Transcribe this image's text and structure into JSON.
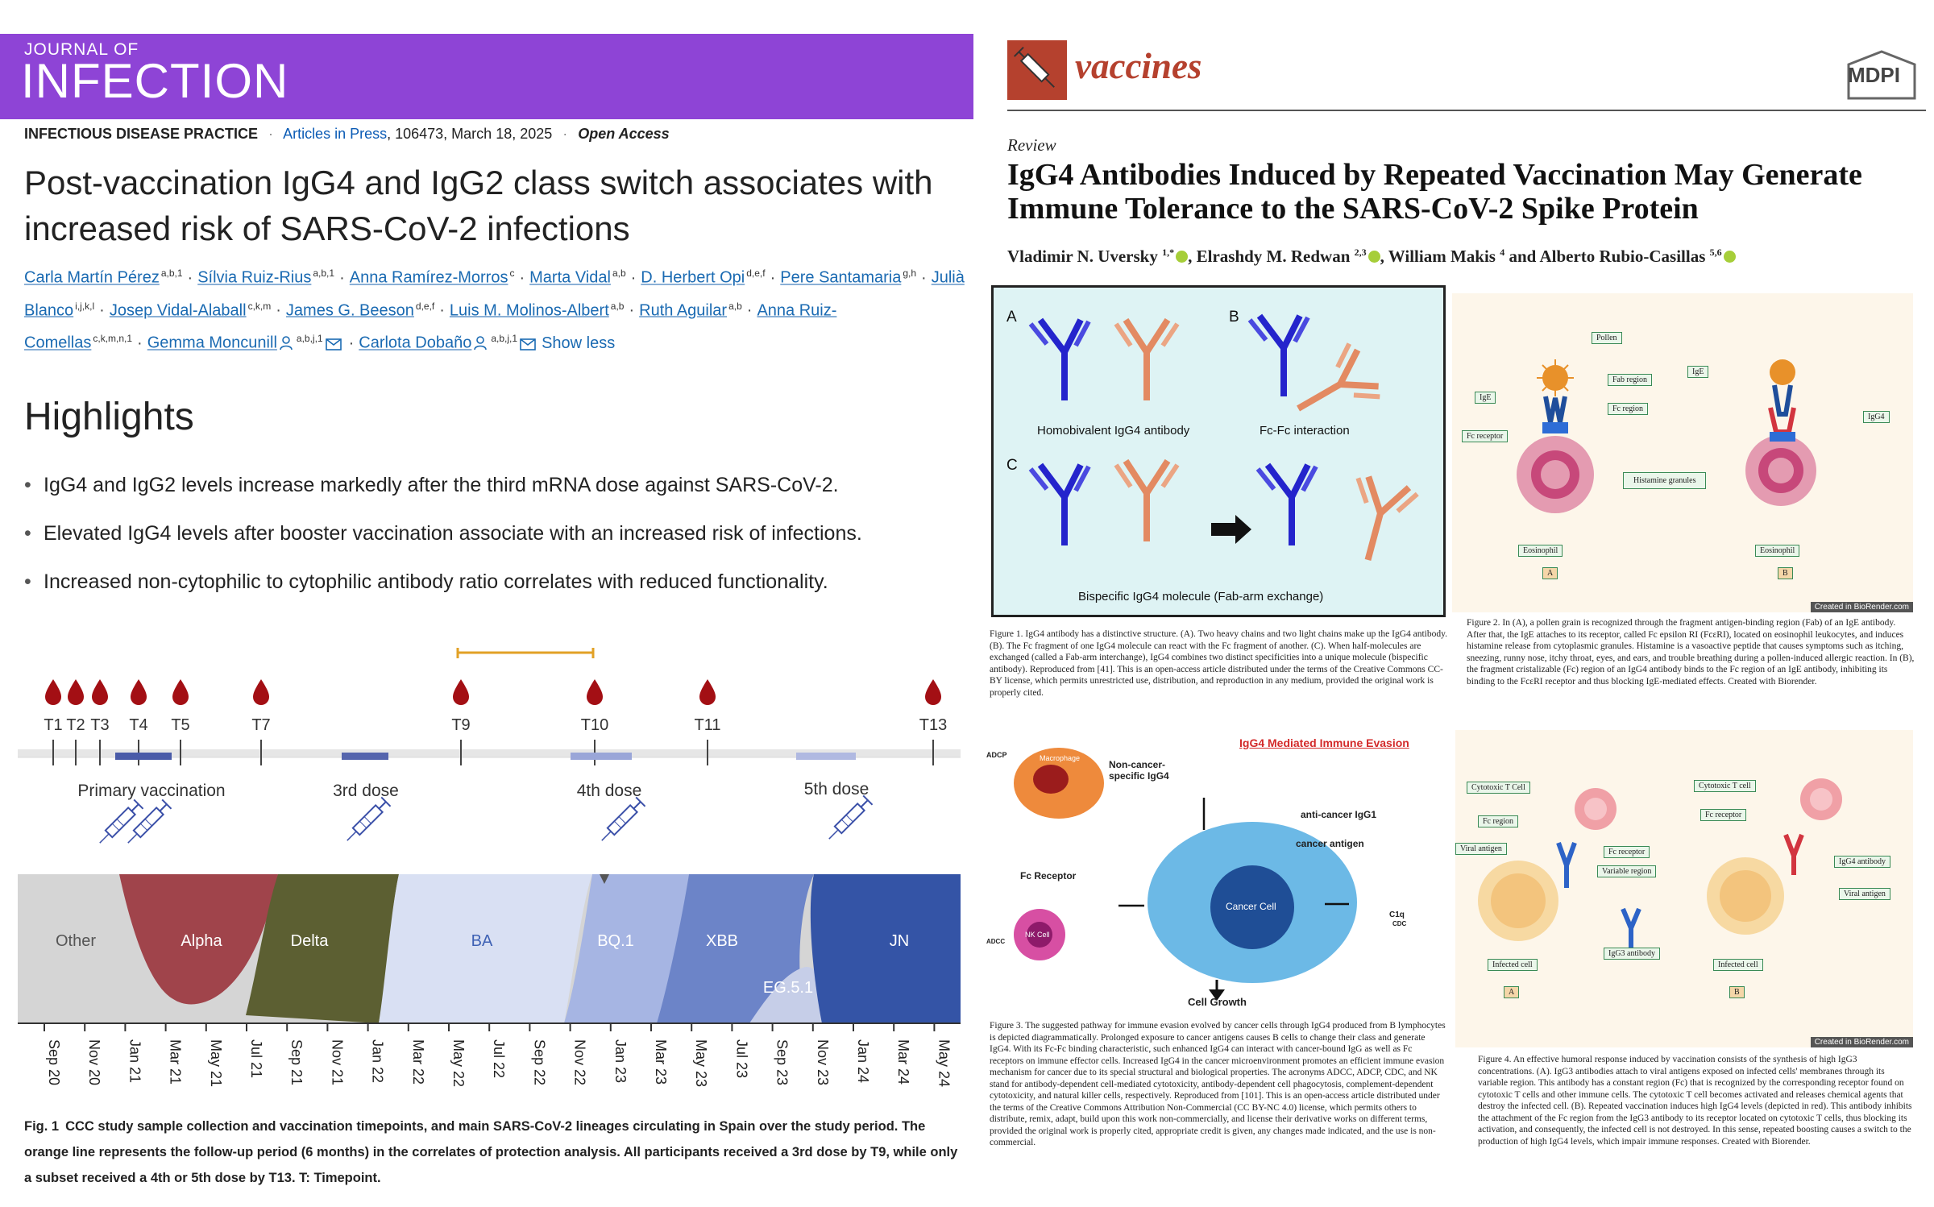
{
  "left": {
    "journal": {
      "small": "JOURNAL OF",
      "big": "INFECTION",
      "bar_color": "#8e44d6"
    },
    "meta": {
      "section": "INFECTIOUS DISEASE PRACTICE",
      "sep": "·",
      "articles": "Articles in Press",
      "rest": ", 106473, March 18, 2025",
      "access": "Open Access"
    },
    "title": "Post-vaccination IgG4 and IgG2 class switch associates with increased risk of SARS-CoV-2 infections",
    "authors": [
      {
        "name": "Carla Martín Pérez",
        "sup": "a,b,1"
      },
      {
        "name": "Sílvia Ruiz-Rius",
        "sup": "a,b,1"
      },
      {
        "name": "Anna Ramírez-Morros",
        "sup": "c"
      },
      {
        "name": "Marta Vidal",
        "sup": "a,b"
      },
      {
        "name": "D. Herbert Opi",
        "sup": "d,e,f"
      },
      {
        "name": "Pere Santamaria",
        "sup": "g,h"
      },
      {
        "name": "Julià Blanco",
        "sup": "i,j,k,l"
      },
      {
        "name": "Josep Vidal-Alaball",
        "sup": "c,k,m"
      },
      {
        "name": "James G. Beeson",
        "sup": "d,e,f"
      },
      {
        "name": "Luis M. Molinos-Albert",
        "sup": "a,b"
      },
      {
        "name": "Ruth Aguilar",
        "sup": "a,b"
      },
      {
        "name": "Anna Ruiz-Comellas",
        "sup": "c,k,m,n,1"
      },
      {
        "name": "Gemma Moncunill",
        "sup": "a,b,j,1"
      },
      {
        "name": "Carlota Dobaño",
        "sup": "a,b,j,1"
      }
    ],
    "show_less": "Show less",
    "highlights_heading": "Highlights",
    "highlights": [
      "IgG4 and IgG2 levels increase markedly after the third mRNA dose against SARS-CoV-2.",
      "Elevated IgG4 levels after booster vaccination associate with an increased risk of infections.",
      "Increased non-cytophilic to cytophilic antibody ratio correlates with reduced functionality."
    ],
    "timeline": {
      "timepoints": [
        "T1",
        "T2",
        "T3",
        "T4",
        "T5",
        "T7",
        "T9",
        "T10",
        "T11",
        "T13"
      ],
      "phases": [
        "Primary vaccination",
        "3rd dose",
        "4th dose",
        "5th dose"
      ],
      "lineages": [
        "Other",
        "Alpha",
        "Delta",
        "BA",
        "BQ.1",
        "XBB",
        "EG.5.1",
        "JN"
      ],
      "months": [
        "Sep 20",
        "Nov 20",
        "Jan 21",
        "Mar 21",
        "May 21",
        "Jul 21",
        "Sep 21",
        "Nov 21",
        "Jan 22",
        "Mar 22",
        "May 22",
        "Jul 22",
        "Sep 22",
        "Nov 22",
        "Jan 23",
        "Mar 23",
        "May 23",
        "Jul 23",
        "Sep 23",
        "Nov 23",
        "Jan 24",
        "Mar 24",
        "May 24"
      ]
    },
    "fig1_caption": {
      "tag": "Fig. 1",
      "text": "CCC study sample collection and vaccination timepoints, and main SARS-CoV-2 lineages circulating in Spain over the study period. The orange line represents the follow-up period (6 months) in the correlates of protection analysis. All participants received a 3rd dose by T9, while only a subset received a 4th or 5th dose by T13. T: Timepoint."
    }
  },
  "right": {
    "journal_name": "vaccines",
    "publisher": "MDPI",
    "article_type": "Review",
    "title": "IgG4 Antibodies Induced by Repeated Vaccination May Generate Immune Tolerance to the SARS-CoV-2 Spike Protein",
    "authors": [
      {
        "name": "Vladimir N. Uversky",
        "sup": "1,*"
      },
      {
        "name": "Elrashdy M. Redwan",
        "sup": "2,3"
      },
      {
        "name": "William Makis",
        "sup": "4"
      },
      {
        "name": "Alberto Rubio-Casillas",
        "sup": "5,6"
      }
    ],
    "author_joiner": "and",
    "fig1": {
      "labels": [
        "A",
        "B",
        "C"
      ],
      "captions": [
        "Homobivalent IgG4 antibody",
        "Fc-Fc interaction",
        "Bispecific IgG4 molecule (Fab-arm exchange)"
      ],
      "caption_text": "Figure 1. IgG4 antibody has a distinctive structure. (A). Two heavy chains and two light chains make up the IgG4 antibody. (B). The Fc fragment of one IgG4 molecule can react with the Fc fragment of another. (C). When half-molecules are exchanged (called a Fab-arm interchange), IgG4 combines two distinct specificities into a unique molecule (bispecific antibody). Reproduced from [41]. This is an open-access article distributed under the terms of the Creative Commons CC-BY license, which permits unrestricted use, distribution, and reproduction in any medium, provided the original work is properly cited."
    },
    "fig2": {
      "labels": [
        "Pollen",
        "Fab region",
        "IgE",
        "Fc region",
        "Fc receptor",
        "Histamine granules",
        "Eosinophil",
        "A",
        "IgE",
        "IgG4",
        "Eosinophil",
        "B"
      ],
      "credit": "Created in BioRender.com",
      "caption_text": "Figure 2. In (A), a pollen grain is recognized through the fragment antigen-binding region (Fab) of an IgE antibody. After that, the IgE attaches to its receptor, called Fc epsilon RI (FcεRI), located on eosinophil leukocytes, and induces histamine release from cytoplasmic granules. Histamine is a vasoactive peptide that causes symptoms such as itching, sneezing, runny nose, itchy throat, eyes, and ears, and trouble breathing during a pollen-induced allergic reaction. In (B), the fragment cristalizable (Fc) region of an IgG4 antibody binds to the Fc region of an IgE antibody, inhibiting its binding to the FcεRI receptor and thus blocking IgE-mediated effects. Created with Biorender."
    },
    "fig3": {
      "title": "IgG4 Mediated Immune Evasion",
      "labels": [
        "ADCP",
        "Macrophage",
        "Non-cancer-specific IgG4",
        "anti-cancer IgG1",
        "cancer antigen",
        "Fc Receptor",
        "Cancer Cell",
        "C1q",
        "CDC",
        "ADCC",
        "NK Cell",
        "Cell Growth"
      ],
      "caption_text": "Figure 3. The suggested pathway for immune evasion evolved by cancer cells through IgG4 produced from B lymphocytes is depicted diagrammatically. Prolonged exposure to cancer antigens causes B cells to change their class and generate IgG4. With its Fc-Fc binding characteristic, such enhanced IgG4 can interact with cancer-bound IgG as well as Fc receptors on immune effector cells. Increased IgG4 in the cancer microenvironment promotes an efficient immune evasion mechanism for cancer due to its special structural and biological properties. The acronyms ADCC, ADCP, CDC, and NK stand for antibody-dependent cell-mediated cytotoxicity, antibody-dependent cell phagocytosis, complement-dependent cytotoxicity, and natural killer cells, respectively. Reproduced from [101]. This is an open-access article distributed under the terms of the Creative Commons Attribution Non-Commercial (CC BY-NC 4.0) license, which permits others to distribute, remix, adapt, build upon this work non-commercially, and license their derivative works on different terms, provided the original work is properly cited, appropriate credit is given, any changes made indicated, and the use is non-commercial."
    },
    "fig4": {
      "labels": [
        "Cytotoxic T Cell",
        "Fc region",
        "Viral antigen",
        "Fc receptor",
        "Variable region",
        "IgG3 antibody",
        "Infected cell",
        "A",
        "Cytotoxic T cell",
        "Fc receptor",
        "IgG4 antibody",
        "Viral antigen",
        "Infected cell",
        "B"
      ],
      "credit": "Created in BioRender.com",
      "caption_text": "Figure 4. An effective humoral response induced by vaccination consists of the synthesis of high IgG3 concentrations. (A). IgG3 antibodies attach to viral antigens exposed on infected cells' membranes through its variable region. This antibody has a constant region (Fc) that is recognized by the corresponding receptor found on cytotoxic T cells and other immune cells. The cytotoxic T cell becomes activated and releases chemical agents that destroy the infected cell. (B). Repeated vaccination induces high IgG4 levels (depicted in red). This antibody inhibits the attachment of the Fc region from the IgG3 antibody to its receptor located on cytotoxic T cells, thus blocking its activation, and consequently, the infected cell is not destroyed. In this sense, repeated boosting causes a switch to the production of high IgG4 levels, which impair immune responses. Created with Biorender."
    }
  }
}
